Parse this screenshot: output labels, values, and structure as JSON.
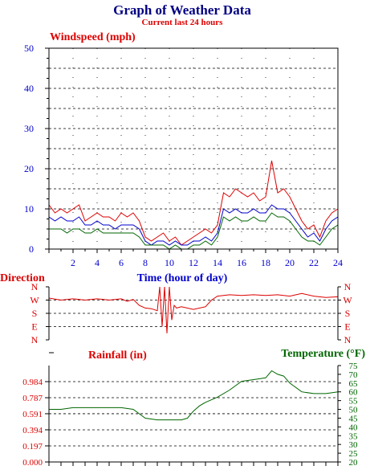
{
  "header": {
    "title": "Graph of Weather Data",
    "subtitle": "Current last 24 hours"
  },
  "colors": {
    "title": "#000080",
    "red": "#dd0000",
    "blue": "#0000cc",
    "green": "#006600",
    "grid": "#000000",
    "axis": "#000000"
  },
  "chart_data": [
    {
      "id": "windspeed",
      "type": "line",
      "title": "Windspeed (mph)",
      "xlabel": "Time (hour of day)",
      "ylabel": "",
      "xlim": [
        0,
        24
      ],
      "ylim": [
        0,
        50
      ],
      "y_ticks": [
        0,
        10,
        20,
        30,
        40,
        50
      ],
      "x_ticks": [
        2,
        4,
        6,
        8,
        10,
        12,
        14,
        16,
        18,
        20,
        22,
        24
      ],
      "grid": true,
      "series": [
        {
          "color": "red",
          "x": [
            0,
            0.5,
            1,
            1.5,
            2,
            2.5,
            3,
            3.5,
            4,
            4.5,
            5,
            5.5,
            6,
            6.5,
            7,
            7.5,
            8,
            8.5,
            9,
            9.5,
            10,
            10.5,
            11,
            11.5,
            12,
            12.5,
            13,
            13.5,
            14,
            14.5,
            15,
            15.5,
            16,
            16.5,
            17,
            17.5,
            18,
            18.5,
            19,
            19.5,
            20,
            20.5,
            21,
            21.5,
            22,
            22.5,
            23,
            23.5,
            24
          ],
          "y": [
            11,
            9,
            10,
            9,
            10,
            11,
            7,
            8,
            9,
            8,
            8,
            7,
            9,
            8,
            9,
            7,
            3,
            2,
            3,
            4,
            2,
            3,
            1,
            2,
            3,
            4,
            5,
            4,
            6,
            14,
            13,
            15,
            14,
            13,
            14,
            12,
            13,
            22,
            14,
            15,
            13,
            10,
            7,
            5,
            6,
            3,
            7,
            9,
            10
          ]
        },
        {
          "color": "blue",
          "x": [
            0,
            0.5,
            1,
            1.5,
            2,
            2.5,
            3,
            3.5,
            4,
            4.5,
            5,
            5.5,
            6,
            6.5,
            7,
            7.5,
            8,
            8.5,
            9,
            9.5,
            10,
            10.5,
            11,
            11.5,
            12,
            12.5,
            13,
            13.5,
            14,
            14.5,
            15,
            15.5,
            16,
            16.5,
            17,
            17.5,
            18,
            18.5,
            19,
            19.5,
            20,
            20.5,
            21,
            21.5,
            22,
            22.5,
            23,
            23.5,
            24
          ],
          "y": [
            8,
            7,
            8,
            7,
            7,
            8,
            6,
            6,
            7,
            6,
            6,
            5,
            6,
            6,
            6,
            5,
            2,
            1,
            2,
            2,
            1,
            2,
            1,
            1,
            2,
            2,
            3,
            2,
            4,
            10,
            9,
            10,
            9,
            9,
            10,
            9,
            9,
            11,
            10,
            10,
            9,
            7,
            5,
            3,
            4,
            2,
            5,
            7,
            8
          ]
        },
        {
          "color": "green",
          "x": [
            0,
            0.5,
            1,
            1.5,
            2,
            2.5,
            3,
            3.5,
            4,
            4.5,
            5,
            5.5,
            6,
            6.5,
            7,
            7.5,
            8,
            8.5,
            9,
            9.5,
            10,
            10.5,
            11,
            11.5,
            12,
            12.5,
            13,
            13.5,
            14,
            14.5,
            15,
            15.5,
            16,
            16.5,
            17,
            17.5,
            18,
            18.5,
            19,
            19.5,
            20,
            20.5,
            21,
            21.5,
            22,
            22.5,
            23,
            23.5,
            24
          ],
          "y": [
            5,
            5,
            5,
            4,
            5,
            5,
            4,
            4,
            5,
            4,
            4,
            4,
            4,
            4,
            4,
            3,
            1,
            1,
            1,
            1,
            0,
            1,
            0,
            0,
            1,
            1,
            2,
            1,
            3,
            8,
            7,
            8,
            7,
            7,
            8,
            7,
            7,
            9,
            8,
            8,
            7,
            5,
            3,
            2,
            2,
            1,
            3,
            5,
            6
          ]
        }
      ]
    },
    {
      "id": "direction",
      "type": "line",
      "title": "Direction",
      "y_categories": [
        "N",
        "W",
        "S",
        "E",
        "N"
      ],
      "xlim": [
        0,
        24
      ],
      "series": [
        {
          "color": "red",
          "x": [
            0,
            1,
            2,
            3,
            4,
            5,
            6,
            6.5,
            7,
            7.5,
            8,
            8.5,
            9,
            9.2,
            9.4,
            9.6,
            9.8,
            10,
            10.2,
            10.4,
            10.6,
            11,
            12,
            13,
            13.5,
            14,
            15,
            16,
            17,
            18,
            19,
            20,
            21,
            22,
            23,
            24
          ],
          "y": [
            3.15,
            3.0,
            3.1,
            3.0,
            3.1,
            3.0,
            3.1,
            2.9,
            3.05,
            2.6,
            2.4,
            2.35,
            2.2,
            4.0,
            1.0,
            4.0,
            0.5,
            4.0,
            1.5,
            2.6,
            2.4,
            2.5,
            2.3,
            2.5,
            3.0,
            3.3,
            3.4,
            3.35,
            3.4,
            3.35,
            3.4,
            3.3,
            3.5,
            3.3,
            3.2,
            3.25
          ]
        }
      ]
    },
    {
      "id": "rainfall-temperature",
      "type": "line",
      "title": "Rainfall (in)",
      "y2label": "Temperature (°F)",
      "xlim": [
        0,
        24
      ],
      "ylim": [
        0,
        1.181
      ],
      "y_ticks": [
        "0.000",
        "0.197",
        "0.394",
        "0.591",
        "0.787",
        "0.984"
      ],
      "y2lim": [
        20,
        75
      ],
      "y2_ticks": [
        20,
        25,
        30,
        35,
        40,
        45,
        50,
        55,
        60,
        65,
        70,
        75
      ],
      "grid": true,
      "series": [
        {
          "color": "green",
          "axis": "right",
          "x": [
            0,
            1,
            2,
            3,
            4,
            5,
            6,
            7,
            8,
            9,
            10,
            11,
            11.5,
            12,
            12.5,
            13,
            14,
            15,
            16,
            17,
            18,
            18.5,
            19,
            19.5,
            20,
            21,
            22,
            23,
            24
          ],
          "y": [
            50,
            50,
            51,
            51,
            51,
            51,
            51,
            50,
            45,
            44,
            44,
            44,
            45,
            49,
            52,
            54,
            57,
            61,
            66,
            67,
            68,
            72,
            70,
            69,
            65,
            60,
            59,
            59,
            60
          ]
        },
        {
          "color": "red",
          "axis": "left",
          "x": [
            0,
            24
          ],
          "y": [
            0,
            0
          ]
        }
      ]
    }
  ]
}
